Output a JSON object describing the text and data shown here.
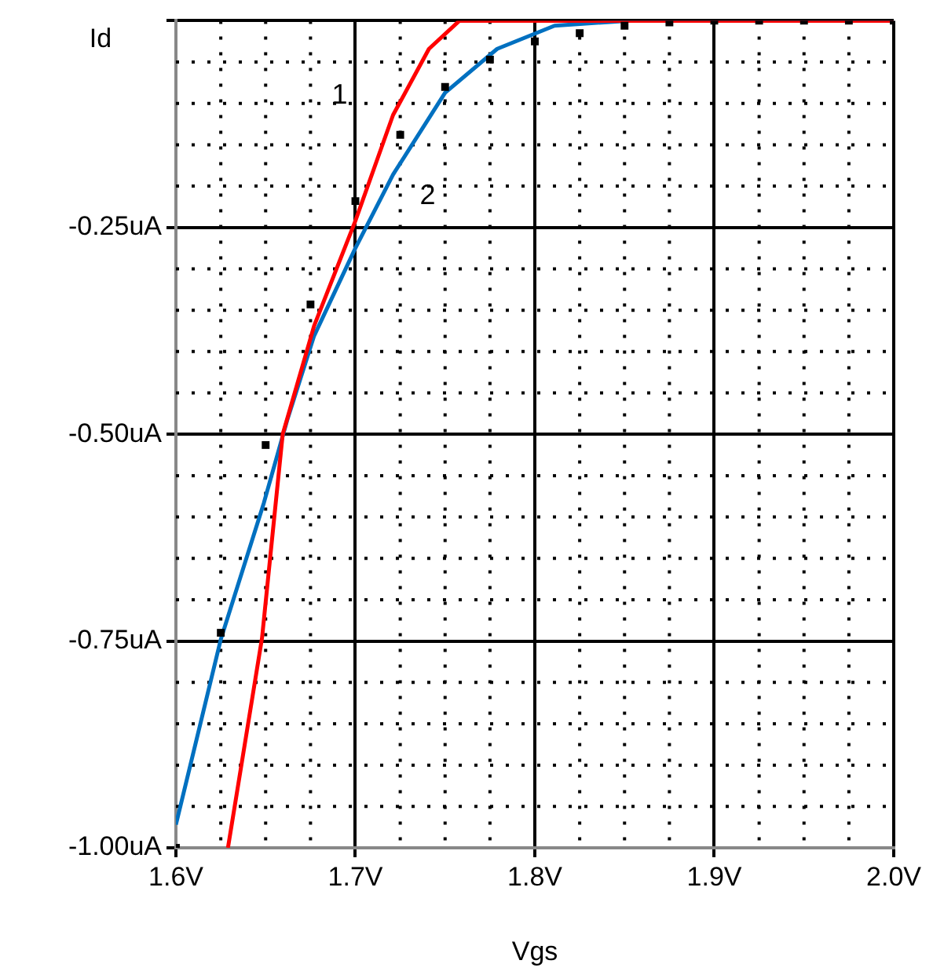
{
  "chart_data": {
    "type": "line",
    "xlabel": "Vgs",
    "ylabel": "Id",
    "xlim": [
      1.6,
      2.0
    ],
    "ylim": [
      -1.0,
      0
    ],
    "xticks": [
      {
        "value": 1.6,
        "label": "1.6V"
      },
      {
        "value": 1.7,
        "label": "1.7V"
      },
      {
        "value": 1.8,
        "label": "1.8V"
      },
      {
        "value": 1.9,
        "label": "1.9V"
      },
      {
        "value": 2.0,
        "label": "2.0V"
      }
    ],
    "yticks": [
      {
        "value": -1.0,
        "label": "-1.00uA"
      },
      {
        "value": -0.75,
        "label": "-0.75uA"
      },
      {
        "value": -0.5,
        "label": "-0.50uA"
      },
      {
        "value": -0.25,
        "label": "-0.25uA"
      },
      {
        "value": 0,
        "label": null
      }
    ],
    "grid": true,
    "legend": false,
    "line_style": "solid",
    "marker": "none",
    "series": [
      {
        "name": "1",
        "color": "#ff0000",
        "x": [
          1.629,
          1.648,
          1.6595,
          1.677,
          1.7,
          1.721,
          1.741,
          1.758,
          1.8,
          1.9,
          2.0
        ],
        "values": [
          -1.0,
          -0.746,
          -0.5,
          -0.369,
          -0.242,
          -0.114,
          -0.034,
          0,
          0,
          0,
          0
        ]
      },
      {
        "name": "2",
        "color": "#0070c0",
        "x": [
          1.6,
          1.625,
          1.649,
          1.662,
          1.677,
          1.7,
          1.721,
          1.75,
          1.779,
          1.811,
          1.852,
          1.9,
          2.0
        ],
        "values": [
          -0.972,
          -0.748,
          -0.583,
          -0.483,
          -0.381,
          -0.275,
          -0.186,
          -0.087,
          -0.034,
          -0.006,
          0,
          0,
          0
        ]
      },
      {
        "type": "scatter",
        "color": "#000000",
        "marker": "square",
        "x": [
          1.6,
          1.625,
          1.65,
          1.675,
          1.7,
          1.725,
          1.75,
          1.775,
          1.8,
          1.825,
          1.85,
          1.875,
          1.9,
          1.925,
          1.95,
          1.975,
          2.0
        ],
        "values": [
          -1.0,
          -0.74,
          -0.513,
          -0.343,
          -0.218,
          -0.138,
          -0.08,
          -0.047,
          -0.025,
          -0.015,
          -0.006,
          -0.002,
          0,
          0,
          0,
          0,
          0
        ]
      }
    ]
  }
}
